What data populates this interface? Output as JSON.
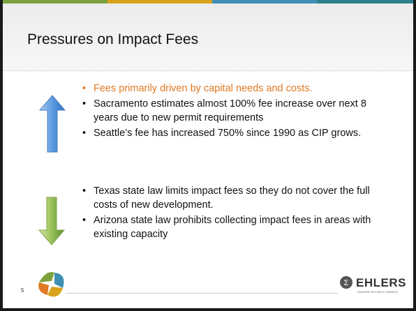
{
  "slide": {
    "title": "Pressures on Impact Fees",
    "increase_bullets": [
      "Fees primarily driven by capital needs and costs.",
      "Sacramento  estimates almost 100% fee increase over next 8 years due to new permit requirements",
      "Seattle’s fee has increased 750% since 1990 as CIP grows."
    ],
    "decrease_bullets": [
      "Texas state law limits impact fees so they do not cover the full  costs of new development.",
      "Arizona state law prohibits collecting impact fees in areas with existing capacity"
    ],
    "page_number": "5",
    "logo": {
      "name": "EHLERS",
      "tagline": "LEADERS IN PUBLIC FINANCE"
    }
  }
}
